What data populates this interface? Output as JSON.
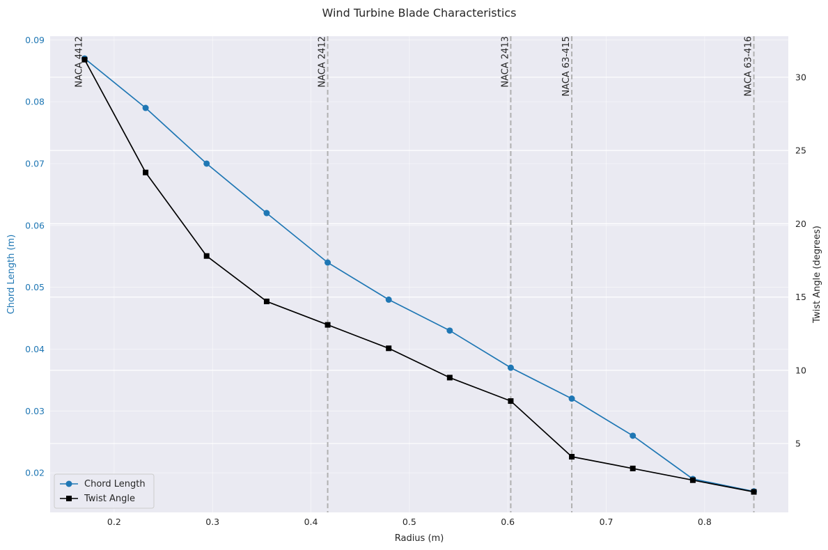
{
  "chart_data": {
    "type": "line",
    "title": "Wind Turbine Blade Characteristics",
    "xlabel": "Radius (m)",
    "ylabel_left": "Chord Length (m)",
    "ylabel_right": "Twist Angle (degrees)",
    "xlim": [
      0.135,
      0.885
    ],
    "ylim_left": [
      0.0136,
      0.0906
    ],
    "ylim_right": [
      0.3,
      32.8
    ],
    "x_ticks": [
      0.2,
      0.3,
      0.4,
      0.5,
      0.6,
      0.7,
      0.8
    ],
    "x_tick_labels": [
      "0.2",
      "0.3",
      "0.4",
      "0.5",
      "0.6",
      "0.7",
      "0.8"
    ],
    "y_left_ticks": [
      0.02,
      0.03,
      0.04,
      0.05,
      0.06,
      0.07,
      0.08,
      0.09
    ],
    "y_left_tick_labels": [
      "0.02",
      "0.03",
      "0.04",
      "0.05",
      "0.06",
      "0.07",
      "0.08",
      "0.09"
    ],
    "y_right_ticks": [
      5,
      10,
      15,
      20,
      25,
      30
    ],
    "y_right_tick_labels": [
      "5",
      "10",
      "15",
      "20",
      "25",
      "30"
    ],
    "grid": true,
    "legend_position": "lower-left",
    "x": [
      0.17,
      0.232,
      0.294,
      0.355,
      0.417,
      0.479,
      0.541,
      0.603,
      0.665,
      0.727,
      0.788,
      0.85
    ],
    "series": [
      {
        "name": "Chord Length",
        "axis": "left",
        "color": "#1f77b4",
        "marker": "circle",
        "values": [
          0.087,
          0.079,
          0.07,
          0.062,
          0.054,
          0.048,
          0.043,
          0.037,
          0.032,
          0.026,
          0.019,
          0.017
        ]
      },
      {
        "name": "Twist Angle",
        "axis": "right",
        "color": "#000000",
        "marker": "square",
        "values": [
          31.2,
          23.5,
          17.8,
          14.7,
          13.1,
          11.5,
          9.5,
          7.9,
          4.1,
          3.3,
          2.5,
          1.7
        ]
      }
    ],
    "annotations": [
      {
        "x": 0.17,
        "label": "NACA 4412",
        "line": false
      },
      {
        "x": 0.417,
        "label": "NACA 2412",
        "line": true
      },
      {
        "x": 0.603,
        "label": "NACA 2413",
        "line": true
      },
      {
        "x": 0.665,
        "label": "NACA 63-415",
        "line": true
      },
      {
        "x": 0.85,
        "label": "NACA 63-416",
        "line": true
      }
    ],
    "colors": {
      "plot_background": "#eaeaf2",
      "grid": "#ffffff",
      "left_axis": "#1f77b4",
      "right_axis": "#000000",
      "annotation_line": "#b0b0b0"
    }
  }
}
